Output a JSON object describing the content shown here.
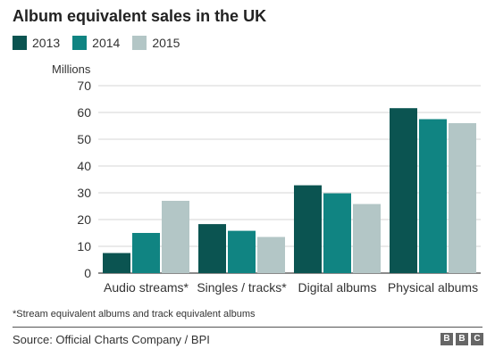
{
  "chart_data": {
    "type": "bar",
    "title": "Album equivalent sales in the UK",
    "ylabel": "Millions",
    "xlabel": "",
    "ylim": [
      0,
      70
    ],
    "yticks": [
      0,
      10,
      20,
      30,
      40,
      50,
      60,
      70
    ],
    "grid": true,
    "legend_position": "top-left",
    "categories": [
      "Audio streams*",
      "Singles / tracks*",
      "Digital albums",
      "Physical albums"
    ],
    "series": [
      {
        "name": "2013",
        "color": "#0b5451",
        "values": [
          7.5,
          18.3,
          32.8,
          61.6
        ]
      },
      {
        "name": "2014",
        "color": "#108482",
        "values": [
          15.0,
          15.8,
          29.8,
          57.5
        ]
      },
      {
        "name": "2015",
        "color": "#b3c6c6",
        "values": [
          27.0,
          13.5,
          25.8,
          56.0
        ]
      }
    ]
  },
  "footnote": "*Stream equivalent albums and track equivalent albums",
  "source": "Source: Official Charts Company / BPI",
  "logo_letters": [
    "B",
    "B",
    "C"
  ]
}
